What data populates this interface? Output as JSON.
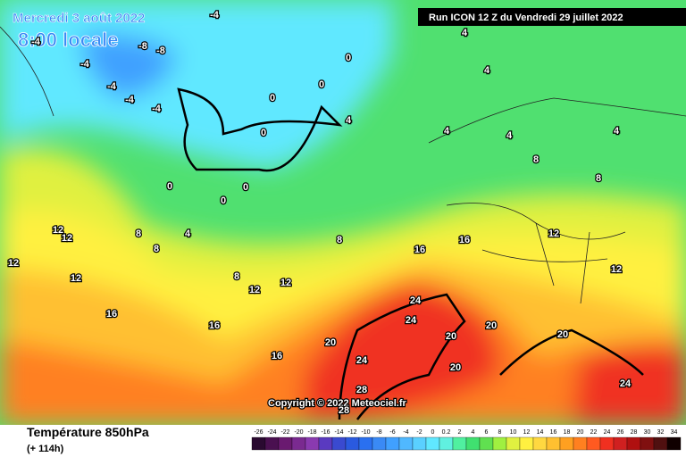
{
  "header": {
    "date": "Mercredi 3 août 2022",
    "time": "8:00 locale",
    "run": "Run ICON 12 Z du Vendredi 29 juillet 2022"
  },
  "copyright": "Copyright © 2022 Meteociel.fr",
  "footer": {
    "title": "Température 850hPa",
    "lead": "(+ 114h)"
  },
  "isotherm_labels": [
    -4,
    -4,
    -8,
    -8,
    -4,
    -4,
    -4,
    -4,
    0,
    0,
    0,
    0,
    0,
    0,
    0,
    4,
    4,
    4,
    4,
    4,
    4,
    4,
    8,
    8,
    8,
    8,
    8,
    8,
    12,
    12,
    12,
    12,
    12,
    12,
    12,
    12,
    16,
    16,
    16,
    16,
    16,
    20,
    20,
    20,
    20,
    20,
    24,
    24,
    24,
    24,
    28,
    28
  ],
  "scale": {
    "labels": [
      -26,
      -24,
      -22,
      -20,
      -18,
      -16,
      -14,
      -12,
      -10,
      -8,
      -6,
      -4,
      -2,
      0,
      {
        "value": 0,
        "label": "0.2"
      },
      2,
      4,
      6,
      8,
      10,
      12,
      14,
      16,
      18,
      20,
      22,
      24,
      26,
      28,
      30,
      32,
      34
    ],
    "colors": [
      "#2a0a30",
      "#4a1050",
      "#6a1a70",
      "#7a2a90",
      "#8a3ab0",
      "#5a3ac0",
      "#3a4ad0",
      "#2a5ae0",
      "#2a70f0",
      "#3a8af5",
      "#40a0ff",
      "#50b8ff",
      "#5ad0ff",
      "#60e8ff",
      "#60f0e0",
      "#50f0a0",
      "#40e070",
      "#60e050",
      "#a0f040",
      "#e0f040",
      "#fff040",
      "#ffd840",
      "#ffc030",
      "#ffa020",
      "#ff8020",
      "#ff5a20",
      "#f03020",
      "#d02020",
      "#b01010",
      "#801010",
      "#501010",
      "#100000"
    ]
  }
}
